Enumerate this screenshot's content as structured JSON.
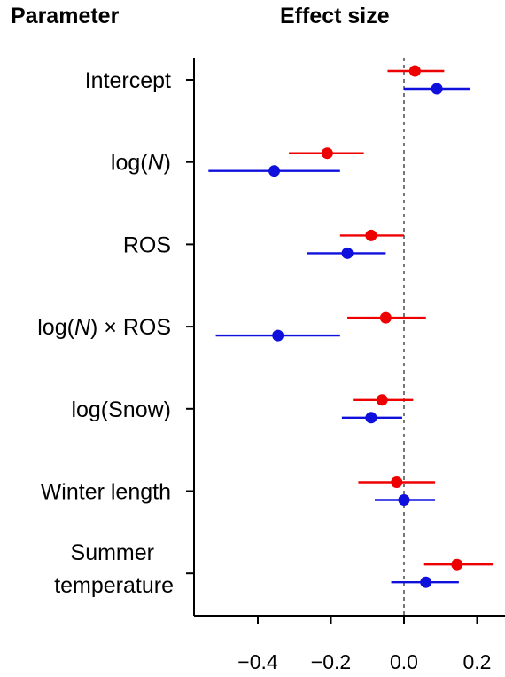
{
  "headers": {
    "parameter": "Parameter",
    "effect": "Effect size"
  },
  "chart_data": {
    "type": "forest",
    "title": "",
    "xlabel": "",
    "ylabel": "",
    "xlim": [
      -0.57,
      0.27
    ],
    "xticks": [
      -0.4,
      -0.2,
      0.0,
      0.2
    ],
    "xtick_labels": [
      "−0.4",
      "−0.2",
      "0.0",
      "0.2"
    ],
    "reference_line": 0,
    "categories": [
      {
        "label": "Intercept"
      },
      {
        "label_parts": [
          {
            "text": "log("
          },
          {
            "text": "N",
            "italic": true
          },
          {
            "text": ")"
          }
        ]
      },
      {
        "label": "ROS"
      },
      {
        "label_parts": [
          {
            "text": "log("
          },
          {
            "text": "N",
            "italic": true
          },
          {
            "text": ") × ROS"
          }
        ]
      },
      {
        "label": "log(Snow)"
      },
      {
        "label": "Winter length"
      },
      {
        "label_lines": [
          "Summer",
          "temperature"
        ]
      }
    ],
    "series": [
      {
        "color": "#ee0000",
        "estimates": [
          0.03,
          -0.21,
          -0.09,
          -0.05,
          -0.06,
          -0.02,
          0.145
        ],
        "lower": [
          -0.045,
          -0.315,
          -0.175,
          -0.155,
          -0.14,
          -0.125,
          0.055
        ],
        "upper": [
          0.11,
          -0.11,
          0.0,
          0.06,
          0.025,
          0.085,
          0.245
        ]
      },
      {
        "color": "#1010dd",
        "estimates": [
          0.09,
          -0.355,
          -0.155,
          -0.345,
          -0.09,
          0.0,
          0.06
        ],
        "lower": [
          0.0,
          -0.535,
          -0.265,
          -0.515,
          -0.17,
          -0.08,
          -0.035
        ],
        "upper": [
          0.18,
          -0.175,
          -0.05,
          -0.175,
          -0.005,
          0.085,
          0.15
        ]
      }
    ]
  }
}
